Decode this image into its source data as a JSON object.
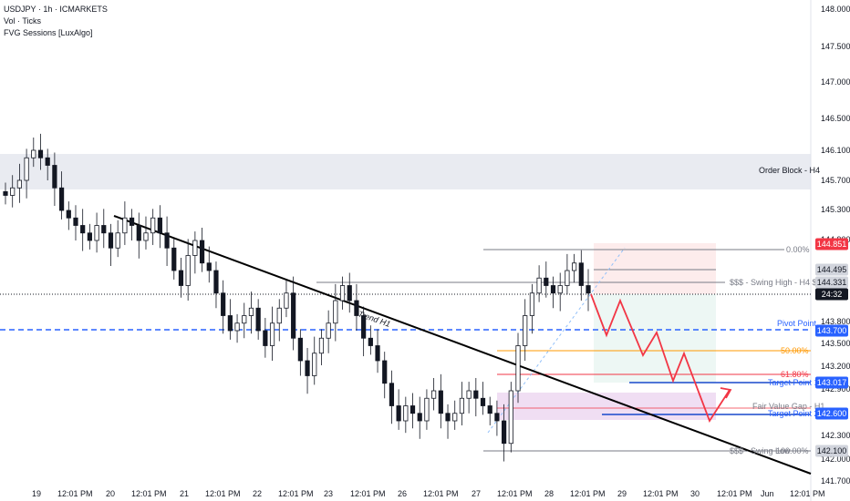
{
  "header": {
    "symbol_line": "USDJPY · 1h · ICMARKETS",
    "indicator_1": "Vol · Ticks",
    "indicator_2": "FVG Sessions [LuxAlgo]"
  },
  "chart_data": {
    "type": "candlestick",
    "y_ticks": [
      "148.000",
      "147.500",
      "147.000",
      "146.500",
      "146.100",
      "145.700",
      "145.300",
      "144.900",
      "143.800",
      "143.500",
      "143.200",
      "142.900",
      "142.300",
      "142.000",
      "141.700"
    ],
    "x_ticks": [
      "19",
      "12:01 PM",
      "20",
      "12:01 PM",
      "21",
      "12:01 PM",
      "22",
      "12:01 PM",
      "23",
      "12:01 PM",
      "26",
      "12:01 PM",
      "27",
      "12:01 PM",
      "28",
      "12:01 PM",
      "29",
      "12:01 PM",
      "30",
      "12:01 PM",
      "Jun",
      "12:01 PM"
    ],
    "price_badges": [
      {
        "text": "144.851",
        "bg": "#f23645",
        "fg": "#ffffff"
      },
      {
        "text": "144.495",
        "bg": "#d1d4dc",
        "fg": "#131722"
      },
      {
        "text": "144.331",
        "bg": "#d1d4dc",
        "fg": "#131722"
      },
      {
        "text": "24:32",
        "bg": "#131722",
        "fg": "#ffffff"
      },
      {
        "text": "143.700",
        "bg": "#2962ff",
        "fg": "#ffffff"
      },
      {
        "text": "143.017",
        "bg": "#2962ff",
        "fg": "#ffffff"
      },
      {
        "text": "142.600",
        "bg": "#2962ff",
        "fg": "#ffffff"
      },
      {
        "text": "142.100",
        "bg": "#d1d4dc",
        "fg": "#131722"
      }
    ],
    "annotations": {
      "order_block": "Order Block - H4",
      "trend": "Trend H1",
      "fib_0": "0.00%",
      "fib_50": "50.00%",
      "fib_618": "61.80%",
      "fib_100": "100.00%",
      "swing_high": "$$$ - Swing High - H4 $$$",
      "swing_low": "$$$ - Swing Low",
      "pivot": "Pivot Point",
      "target_1": "Target Point 1",
      "target_2": "Target Point 2",
      "fvg": "Fair Value Gap - H1"
    },
    "series": [
      {
        "values": [
          145.5,
          145.6,
          145.7,
          146.0,
          146.1,
          146.0,
          145.9,
          145.6,
          145.3,
          145.2,
          145.1,
          145.0,
          144.9,
          145.1,
          145.0,
          144.8,
          145.0,
          145.2,
          145.1,
          144.9,
          145.0,
          145.2,
          145.0,
          144.8,
          144.5,
          144.3,
          144.7,
          144.9,
          144.6,
          144.5,
          144.2,
          143.9,
          143.7,
          143.8,
          143.9,
          144.0,
          143.7,
          143.5,
          143.8,
          144.0,
          144.2,
          143.6,
          143.3,
          143.1,
          143.4,
          143.6,
          143.8,
          144.1,
          144.3,
          144.1,
          143.9,
          143.6,
          143.5,
          143.3,
          143.0,
          142.7,
          142.5,
          142.7,
          142.6,
          142.5,
          142.8,
          142.9,
          142.6,
          142.5,
          142.6,
          142.8,
          142.9,
          142.8,
          142.7,
          142.6,
          142.5,
          142.2,
          142.9,
          143.5,
          143.9,
          144.2,
          144.4,
          144.3,
          144.2,
          144.3,
          144.5,
          144.6,
          144.3,
          144.2
        ]
      }
    ]
  }
}
